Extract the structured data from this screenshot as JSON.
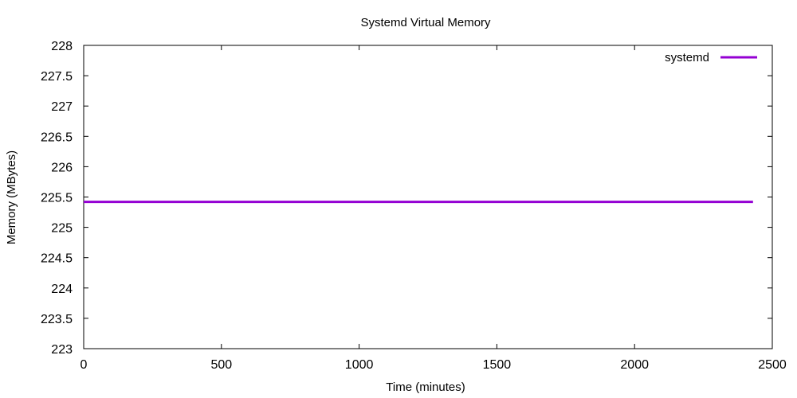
{
  "chart_data": {
    "type": "line",
    "title": "Systemd Virtual Memory",
    "xlabel": "Time (minutes)",
    "ylabel": "Memory (MBytes)",
    "xlim": [
      0,
      2500
    ],
    "ylim": [
      223,
      228
    ],
    "xticks": [
      0,
      500,
      1000,
      1500,
      2000,
      2500
    ],
    "yticks": [
      223,
      223.5,
      224,
      224.5,
      225,
      225.5,
      226,
      226.5,
      227,
      227.5,
      228
    ],
    "grid": false,
    "legend_position": "top-right",
    "series": [
      {
        "name": "systemd",
        "color": "#9400d3",
        "x": [
          0,
          2430
        ],
        "y": [
          225.42,
          225.42
        ]
      }
    ]
  }
}
